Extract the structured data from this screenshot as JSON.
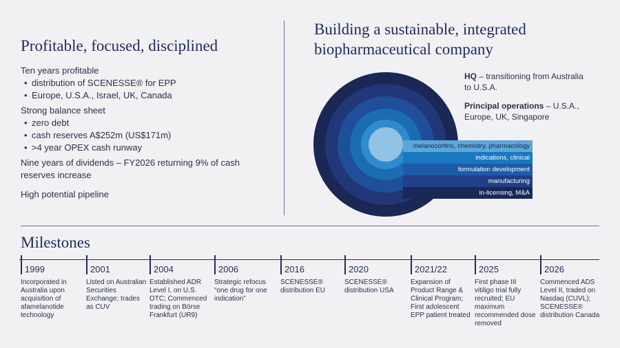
{
  "left": {
    "title": "Profitable, focused, disciplined",
    "groups": [
      {
        "heading": "Ten years profitable",
        "bullets": [
          "distribution of SCENESSE® for EPP",
          "Europe, U.S.A., Israel, UK, Canada"
        ]
      },
      {
        "heading": "Strong balance sheet",
        "bullets": [
          "zero debt",
          "cash reserves A$252m (US$171m)",
          ">4 year OPEX cash runway"
        ]
      },
      {
        "heading": "Nine years of dividends – FY2026 returning 9% of cash reserves increase",
        "bullets": []
      },
      {
        "heading": "High potential pipeline",
        "bullets": []
      }
    ]
  },
  "right": {
    "title_lines": [
      "Building a sustainable, integrated",
      "biopharmaceutical company"
    ],
    "hq": {
      "label": "HQ",
      "text": "– transitioning from Australia to U.S.A."
    },
    "operations": {
      "label": "Principal operations",
      "text": "– U.S.A., Europe, UK, Singapore"
    },
    "layers": [
      "melanocortins, chemistry, pharmacology",
      "indications, clinical",
      "formulation development",
      "manufacturing",
      "in-licensing, M&A"
    ]
  },
  "milestones": {
    "title": "Milestones",
    "items": [
      {
        "year": "1999",
        "text": "Incorporated in Australia upon acquisition of afamelanotide technology"
      },
      {
        "year": "2001",
        "text": "Listed on Australian Securities Exchange; trades as CUV"
      },
      {
        "year": "2004",
        "text": "Established ADR Level I, on U.S. OTC; Commenced trading on Börse Frankfurt (UR9)"
      },
      {
        "year": "2006",
        "text": "Strategic refocus “one drug for one indication”"
      },
      {
        "year": "2016",
        "text": "SCENESSE® distribution EU"
      },
      {
        "year": "2020",
        "text": "SCENESSE® distribution USA"
      },
      {
        "year": "2021/22",
        "text": "Expansion of Product Range & Clinical Program; First adolescent EPP patient treated"
      },
      {
        "year": "2025",
        "text": "First phase III vitiligo trial fully recruited; EU maximum recommended dose removed"
      },
      {
        "year": "2026",
        "text": "Commenced ADS Level II, traded on Nasdaq (CUVL); SCENESSE® distribution Canada"
      }
    ]
  }
}
